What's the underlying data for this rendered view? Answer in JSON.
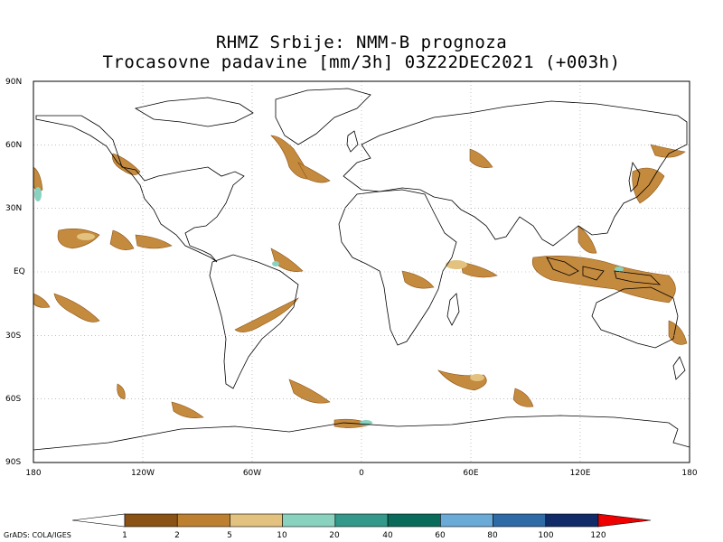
{
  "title": {
    "line1": "RHMZ Srbije: NMM-B prognoza",
    "line2": "Trocasovne padavine [mm/3h] 03Z22DEC2021 (+003h)"
  },
  "lat_ticks": [
    "90N",
    "60N",
    "30N",
    "EQ",
    "30S",
    "60S",
    "90S"
  ],
  "lon_ticks": [
    "180",
    "120W",
    "60W",
    "0",
    "60E",
    "120E",
    "180"
  ],
  "colorbar": {
    "levels": [
      "1",
      "2",
      "5",
      "10",
      "20",
      "40",
      "60",
      "80",
      "100",
      "120"
    ],
    "colors": [
      "#8a5214",
      "#bd8030",
      "#e2c27e",
      "#89d2c0",
      "#34998a",
      "#0a6b5a",
      "#6aaad6",
      "#2d6aa6",
      "#102b68",
      "#ee0000"
    ],
    "underflow_color": "#ffffff"
  },
  "credit": "GrADS: COLA/IGES"
}
